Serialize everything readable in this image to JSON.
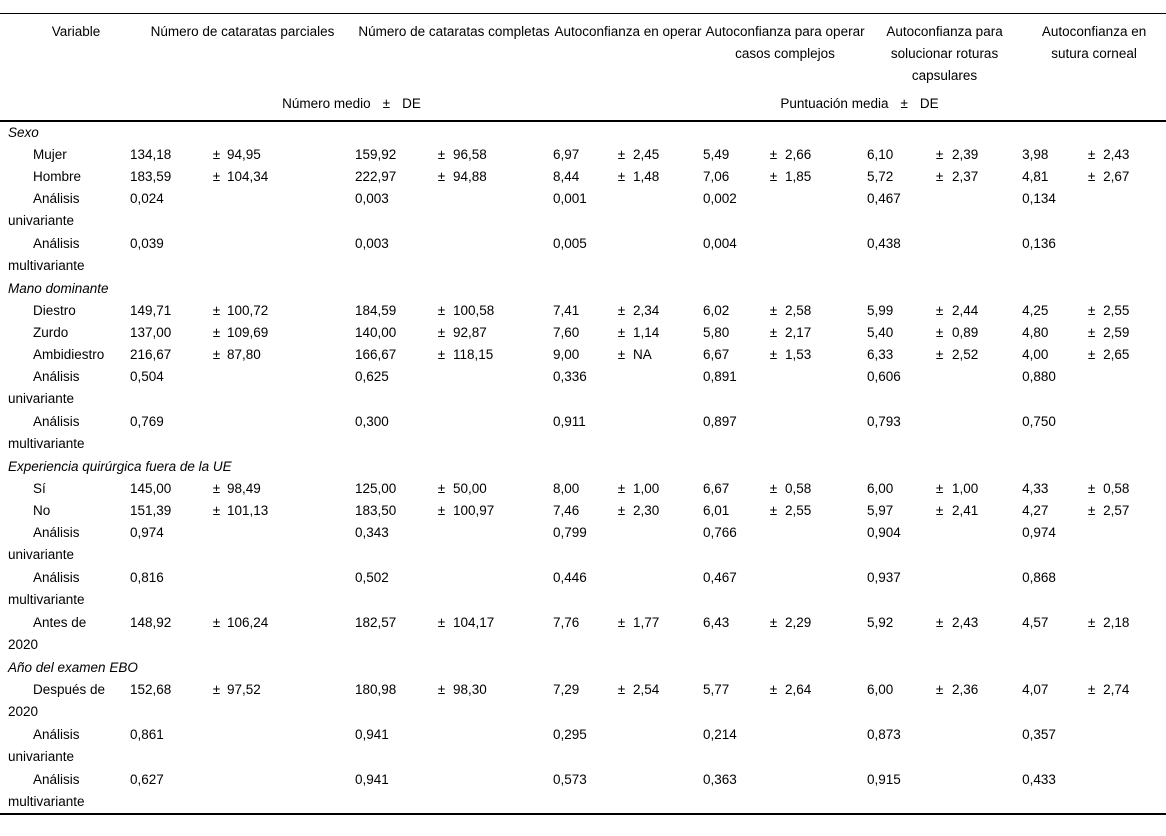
{
  "table": {
    "columns": [
      "Variable",
      "Número de cataratas parciales",
      "Número de cataratas completas",
      "Autoconfianza en operar",
      "Autoconfianza para operar casos complejos",
      "Autoconfianza para solucionar roturas capsulares",
      "Autoconfianza en sutura corneal"
    ],
    "subheader_left": {
      "label": "Número medio",
      "pm": "±",
      "de": "DE"
    },
    "subheader_right": {
      "label": "Puntuación media",
      "pm": "±",
      "de": "DE"
    },
    "sections": [
      {
        "label": "Sexo",
        "rows": [
          {
            "label": "Mujer",
            "cells": [
              [
                "134,18",
                "±",
                "94,95"
              ],
              [
                "159,92",
                "±",
                "96,58"
              ],
              [
                "6,97",
                "±",
                "2,45"
              ],
              [
                "5,49",
                "±",
                "2,66"
              ],
              [
                "6,10",
                "±",
                "2,39"
              ],
              [
                "3,98",
                "±",
                "2,43"
              ]
            ]
          },
          {
            "label": "Hombre",
            "cells": [
              [
                "183,59",
                "±",
                "104,34"
              ],
              [
                "222,97",
                "±",
                "94,88"
              ],
              [
                "8,44",
                "±",
                "1,48"
              ],
              [
                "7,06",
                "±",
                "1,85"
              ],
              [
                "5,72",
                "±",
                "2,37"
              ],
              [
                "4,81",
                "±",
                "2,67"
              ]
            ]
          },
          {
            "label": "Análisis univariante",
            "cells": [
              [
                "0,024",
                "",
                ""
              ],
              [
                "0,003",
                "",
                ""
              ],
              [
                "0,001",
                "",
                ""
              ],
              [
                "0,002",
                "",
                ""
              ],
              [
                "0,467",
                "",
                ""
              ],
              [
                "0,134",
                "",
                ""
              ]
            ]
          },
          {
            "label": "Análisis multivariante",
            "cells": [
              [
                "0,039",
                "",
                ""
              ],
              [
                "0,003",
                "",
                ""
              ],
              [
                "0,005",
                "",
                ""
              ],
              [
                "0,004",
                "",
                ""
              ],
              [
                "0,438",
                "",
                ""
              ],
              [
                "0,136",
                "",
                ""
              ]
            ]
          }
        ]
      },
      {
        "label": "Mano dominante",
        "rows": [
          {
            "label": "Diestro",
            "cells": [
              [
                "149,71",
                "±",
                "100,72"
              ],
              [
                "184,59",
                "±",
                "100,58"
              ],
              [
                "7,41",
                "±",
                "2,34"
              ],
              [
                "6,02",
                "±",
                "2,58"
              ],
              [
                "5,99",
                "±",
                "2,44"
              ],
              [
                "4,25",
                "±",
                "2,55"
              ]
            ]
          },
          {
            "label": "Zurdo",
            "cells": [
              [
                "137,00",
                "±",
                "109,69"
              ],
              [
                "140,00",
                "±",
                "92,87"
              ],
              [
                "7,60",
                "±",
                "1,14"
              ],
              [
                "5,80",
                "±",
                "2,17"
              ],
              [
                "5,40",
                "±",
                "0,89"
              ],
              [
                "4,80",
                "±",
                "2,59"
              ]
            ]
          },
          {
            "label": "Ambidiestro",
            "cells": [
              [
                "216,67",
                "±",
                "87,80"
              ],
              [
                "166,67",
                "±",
                "118,15"
              ],
              [
                "9,00",
                "±",
                "NA"
              ],
              [
                "6,67",
                "±",
                "1,53"
              ],
              [
                "6,33",
                "±",
                "2,52"
              ],
              [
                "4,00",
                "±",
                "2,65"
              ]
            ]
          },
          {
            "label": "Análisis univariante",
            "cells": [
              [
                "0,504",
                "",
                ""
              ],
              [
                "0,625",
                "",
                ""
              ],
              [
                "0,336",
                "",
                ""
              ],
              [
                "0,891",
                "",
                ""
              ],
              [
                "0,606",
                "",
                ""
              ],
              [
                "0,880",
                "",
                ""
              ]
            ]
          },
          {
            "label": "Análisis multivariante",
            "cells": [
              [
                "0,769",
                "",
                ""
              ],
              [
                "0,300",
                "",
                ""
              ],
              [
                "0,911",
                "",
                ""
              ],
              [
                "0,897",
                "",
                ""
              ],
              [
                "0,793",
                "",
                ""
              ],
              [
                "0,750",
                "",
                ""
              ]
            ]
          }
        ]
      },
      {
        "label": "Experiencia quirúrgica fuera de la UE",
        "rows": [
          {
            "label": "Sí",
            "cells": [
              [
                "145,00",
                "±",
                "98,49"
              ],
              [
                "125,00",
                "±",
                "50,00"
              ],
              [
                "8,00",
                "±",
                "1,00"
              ],
              [
                "6,67",
                "±",
                "0,58"
              ],
              [
                "6,00",
                "±",
                "1,00"
              ],
              [
                "4,33",
                "±",
                "0,58"
              ]
            ]
          },
          {
            "label": "No",
            "cells": [
              [
                "151,39",
                "±",
                "101,13"
              ],
              [
                "183,50",
                "±",
                "100,97"
              ],
              [
                "7,46",
                "±",
                "2,30"
              ],
              [
                "6,01",
                "±",
                "2,55"
              ],
              [
                "5,97",
                "±",
                "2,41"
              ],
              [
                "4,27",
                "±",
                "2,57"
              ]
            ]
          },
          {
            "label": "Análisis univariante",
            "cells": [
              [
                "0,974",
                "",
                ""
              ],
              [
                "0,343",
                "",
                ""
              ],
              [
                "0,799",
                "",
                ""
              ],
              [
                "0,766",
                "",
                ""
              ],
              [
                "0,904",
                "",
                ""
              ],
              [
                "0,974",
                "",
                ""
              ]
            ]
          },
          {
            "label": "Análisis multivariante",
            "cells": [
              [
                "0,816",
                "",
                ""
              ],
              [
                "0,502",
                "",
                ""
              ],
              [
                "0,446",
                "",
                ""
              ],
              [
                "0,467",
                "",
                ""
              ],
              [
                "0,937",
                "",
                ""
              ],
              [
                "0,868",
                "",
                ""
              ]
            ]
          },
          {
            "label": "Antes de 2020",
            "cells": [
              [
                "148,92",
                "±",
                "106,24"
              ],
              [
                "182,57",
                "±",
                "104,17"
              ],
              [
                "7,76",
                "±",
                "1,77"
              ],
              [
                "6,43",
                "±",
                "2,29"
              ],
              [
                "5,92",
                "±",
                "2,43"
              ],
              [
                "4,57",
                "±",
                "2,18"
              ]
            ]
          }
        ]
      },
      {
        "label": "Año del examen EBO",
        "rows": [
          {
            "label": "Después de 2020",
            "cells": [
              [
                "152,68",
                "±",
                "97,52"
              ],
              [
                "180,98",
                "±",
                "98,30"
              ],
              [
                "7,29",
                "±",
                "2,54"
              ],
              [
                "5,77",
                "±",
                "2,64"
              ],
              [
                "6,00",
                "±",
                "2,36"
              ],
              [
                "4,07",
                "±",
                "2,74"
              ]
            ]
          },
          {
            "label": "Análisis univariante",
            "cells": [
              [
                "0,861",
                "",
                ""
              ],
              [
                "0,941",
                "",
                ""
              ],
              [
                "0,295",
                "",
                ""
              ],
              [
                "0,214",
                "",
                ""
              ],
              [
                "0,873",
                "",
                ""
              ],
              [
                "0,357",
                "",
                ""
              ]
            ]
          },
          {
            "label": "Análisis multivariante",
            "cells": [
              [
                "0,627",
                "",
                ""
              ],
              [
                "0,941",
                "",
                ""
              ],
              [
                "0,573",
                "",
                ""
              ],
              [
                "0,363",
                "",
                ""
              ],
              [
                "0,915",
                "",
                ""
              ],
              [
                "0,433",
                "",
                ""
              ]
            ]
          }
        ]
      }
    ]
  }
}
